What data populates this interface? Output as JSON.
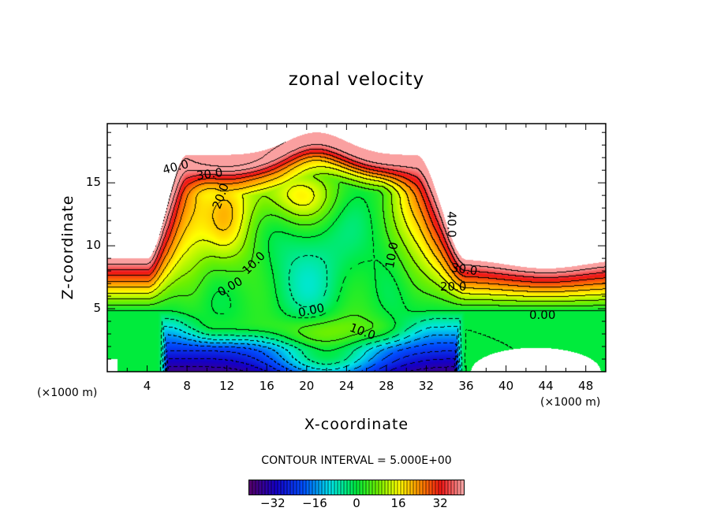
{
  "chart_data": {
    "type": "heatmap",
    "title": "zonal velocity",
    "xlabel": "X-coordinate",
    "ylabel": "Z-coordinate",
    "x_unit_left": "(×1000 m)",
    "x_unit_right": "(×1000 m)",
    "xlim": [
      0,
      50
    ],
    "ylim": [
      0,
      19.7
    ],
    "xticks": [
      "4",
      "8",
      "12",
      "16",
      "20",
      "24",
      "28",
      "32",
      "36",
      "40",
      "44",
      "48"
    ],
    "xtick_values": [
      4,
      8,
      12,
      16,
      20,
      24,
      28,
      32,
      36,
      40,
      44,
      48
    ],
    "yticks": [
      "5",
      "10",
      "15"
    ],
    "ytick_values": [
      5,
      10,
      15
    ],
    "value_range": [
      -41,
      41
    ],
    "contour_interval": "CONTOUR INTERVAL = 5.000E+00",
    "contour_step": 5,
    "contour_labels": [
      "40.0",
      "30.0",
      "20.0",
      "10.0",
      "0.00",
      "10.0",
      "30.0",
      "20.0",
      "0.00",
      "0.00",
      "10.0",
      "40.0"
    ],
    "colorbar": {
      "ticks": [
        "−32",
        "−16",
        "0",
        "16",
        "32"
      ],
      "tick_values": [
        -32,
        -16,
        0,
        16,
        32
      ]
    }
  }
}
